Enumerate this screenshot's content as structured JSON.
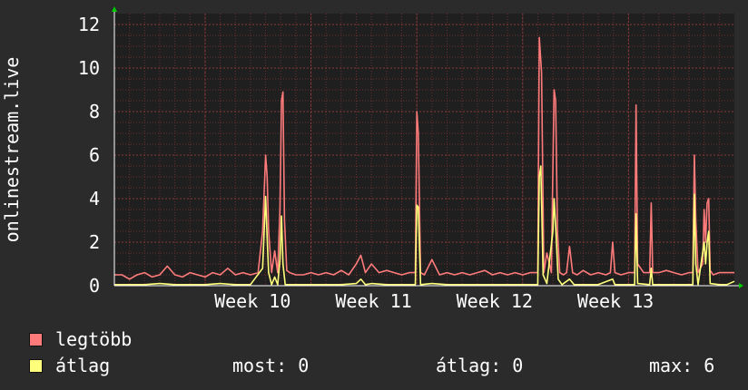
{
  "chart_data": {
    "type": "line",
    "ylabel": "onlinestream.live",
    "ylim": [
      0,
      12.5
    ],
    "yticks": [
      0,
      2,
      4,
      6,
      8,
      10,
      12
    ],
    "x_ticks": [
      "Week 10",
      "Week 11",
      "Week 12",
      "Week 13"
    ],
    "grid": true,
    "series": [
      {
        "name": "legtöbb",
        "color": "#ff7b7b",
        "points": [
          [
            0.0,
            0.5
          ],
          [
            0.5,
            0.5
          ],
          [
            1.0,
            0.3
          ],
          [
            1.5,
            0.5
          ],
          [
            2.0,
            0.6
          ],
          [
            2.5,
            0.4
          ],
          [
            3.0,
            0.5
          ],
          [
            3.5,
            0.9
          ],
          [
            4.0,
            0.5
          ],
          [
            4.5,
            0.4
          ],
          [
            5.0,
            0.6
          ],
          [
            5.5,
            0.5
          ],
          [
            6.0,
            0.4
          ],
          [
            6.5,
            0.6
          ],
          [
            7.0,
            0.5
          ],
          [
            7.5,
            0.8
          ],
          [
            8.0,
            0.5
          ],
          [
            8.5,
            0.6
          ],
          [
            9.0,
            0.5
          ],
          [
            9.5,
            0.6
          ],
          [
            9.8,
            2.5
          ],
          [
            10.0,
            6.0
          ],
          [
            10.1,
            5.0
          ],
          [
            10.2,
            2.5
          ],
          [
            10.4,
            0.6
          ],
          [
            10.6,
            1.6
          ],
          [
            10.8,
            0.6
          ],
          [
            10.95,
            3.5
          ],
          [
            11.05,
            8.5
          ],
          [
            11.15,
            8.9
          ],
          [
            11.25,
            3.0
          ],
          [
            11.4,
            0.7
          ],
          [
            11.6,
            0.6
          ],
          [
            12.0,
            0.5
          ],
          [
            12.5,
            0.5
          ],
          [
            13.0,
            0.6
          ],
          [
            13.5,
            0.5
          ],
          [
            14.0,
            0.6
          ],
          [
            14.5,
            0.5
          ],
          [
            15.0,
            0.7
          ],
          [
            15.5,
            0.5
          ],
          [
            16.0,
            1.0
          ],
          [
            16.3,
            1.4
          ],
          [
            16.6,
            0.6
          ],
          [
            17.0,
            1.0
          ],
          [
            17.5,
            0.6
          ],
          [
            18.0,
            0.7
          ],
          [
            18.5,
            0.6
          ],
          [
            19.0,
            0.5
          ],
          [
            19.5,
            0.6
          ],
          [
            19.9,
            0.6
          ],
          [
            20.0,
            8.0
          ],
          [
            20.1,
            7.0
          ],
          [
            20.25,
            0.6
          ],
          [
            20.5,
            0.5
          ],
          [
            21.0,
            1.2
          ],
          [
            21.5,
            0.5
          ],
          [
            22.0,
            0.6
          ],
          [
            22.5,
            0.5
          ],
          [
            23.0,
            0.6
          ],
          [
            23.5,
            0.5
          ],
          [
            24.0,
            0.6
          ],
          [
            24.5,
            0.7
          ],
          [
            25.0,
            0.5
          ],
          [
            25.5,
            0.6
          ],
          [
            26.0,
            0.5
          ],
          [
            26.5,
            0.6
          ],
          [
            27.0,
            0.5
          ],
          [
            27.5,
            0.6
          ],
          [
            28.0,
            0.6
          ],
          [
            28.1,
            11.4
          ],
          [
            28.25,
            9.8
          ],
          [
            28.4,
            0.6
          ],
          [
            28.6,
            1.5
          ],
          [
            28.9,
            0.6
          ],
          [
            29.0,
            5.5
          ],
          [
            29.08,
            9.0
          ],
          [
            29.18,
            8.5
          ],
          [
            29.3,
            2.5
          ],
          [
            29.45,
            0.6
          ],
          [
            29.7,
            0.5
          ],
          [
            29.9,
            0.6
          ],
          [
            30.1,
            1.8
          ],
          [
            30.3,
            0.6
          ],
          [
            30.6,
            0.5
          ],
          [
            31.0,
            0.7
          ],
          [
            31.5,
            0.5
          ],
          [
            32.0,
            0.6
          ],
          [
            32.5,
            0.5
          ],
          [
            32.8,
            0.6
          ],
          [
            32.95,
            2.0
          ],
          [
            33.1,
            0.6
          ],
          [
            33.5,
            0.5
          ],
          [
            34.0,
            0.6
          ],
          [
            34.4,
            0.6
          ],
          [
            34.5,
            8.3
          ],
          [
            34.6,
            1.0
          ],
          [
            35.0,
            0.6
          ],
          [
            35.4,
            0.6
          ],
          [
            35.5,
            3.8
          ],
          [
            35.6,
            0.6
          ],
          [
            36.0,
            0.6
          ],
          [
            36.5,
            0.7
          ],
          [
            37.0,
            0.6
          ],
          [
            37.5,
            0.5
          ],
          [
            38.0,
            0.6
          ],
          [
            38.25,
            0.6
          ],
          [
            38.35,
            6.0
          ],
          [
            38.45,
            3.0
          ],
          [
            38.6,
            0.6
          ],
          [
            38.9,
            1.0
          ],
          [
            39.0,
            3.5
          ],
          [
            39.1,
            2.0
          ],
          [
            39.2,
            3.8
          ],
          [
            39.3,
            4.0
          ],
          [
            39.4,
            0.7
          ],
          [
            39.6,
            0.5
          ],
          [
            40.0,
            0.6
          ],
          [
            40.5,
            0.6
          ],
          [
            41.0,
            0.6
          ]
        ]
      },
      {
        "name": "átlag",
        "color": "#ffff7b",
        "points": [
          [
            0.0,
            0.05
          ],
          [
            1.0,
            0.05
          ],
          [
            2.0,
            0.05
          ],
          [
            3.0,
            0.1
          ],
          [
            4.0,
            0.05
          ],
          [
            5.0,
            0.05
          ],
          [
            6.0,
            0.05
          ],
          [
            7.0,
            0.1
          ],
          [
            8.0,
            0.05
          ],
          [
            9.0,
            0.05
          ],
          [
            9.8,
            0.8
          ],
          [
            10.0,
            4.1
          ],
          [
            10.1,
            2.2
          ],
          [
            10.2,
            0.6
          ],
          [
            10.4,
            0.05
          ],
          [
            10.6,
            0.4
          ],
          [
            10.8,
            0.05
          ],
          [
            10.95,
            1.2
          ],
          [
            11.05,
            3.2
          ],
          [
            11.15,
            1.0
          ],
          [
            11.3,
            0.05
          ],
          [
            12.0,
            0.05
          ],
          [
            13.0,
            0.05
          ],
          [
            14.0,
            0.05
          ],
          [
            15.0,
            0.05
          ],
          [
            16.0,
            0.1
          ],
          [
            16.3,
            0.3
          ],
          [
            16.6,
            0.05
          ],
          [
            17.0,
            0.1
          ],
          [
            18.0,
            0.05
          ],
          [
            19.0,
            0.05
          ],
          [
            19.9,
            0.05
          ],
          [
            20.0,
            3.7
          ],
          [
            20.1,
            3.6
          ],
          [
            20.25,
            0.05
          ],
          [
            21.0,
            0.1
          ],
          [
            22.0,
            0.05
          ],
          [
            23.0,
            0.05
          ],
          [
            24.0,
            0.05
          ],
          [
            25.0,
            0.05
          ],
          [
            26.0,
            0.05
          ],
          [
            27.0,
            0.05
          ],
          [
            28.0,
            0.05
          ],
          [
            28.1,
            5.0
          ],
          [
            28.2,
            5.5
          ],
          [
            28.35,
            0.5
          ],
          [
            28.6,
            0.1
          ],
          [
            29.0,
            2.5
          ],
          [
            29.08,
            4.0
          ],
          [
            29.2,
            2.5
          ],
          [
            29.35,
            0.3
          ],
          [
            29.6,
            0.05
          ],
          [
            30.1,
            0.3
          ],
          [
            30.4,
            0.05
          ],
          [
            31.0,
            0.05
          ],
          [
            32.0,
            0.05
          ],
          [
            32.95,
            0.3
          ],
          [
            33.1,
            0.05
          ],
          [
            34.0,
            0.05
          ],
          [
            34.4,
            0.05
          ],
          [
            34.5,
            3.3
          ],
          [
            34.6,
            0.1
          ],
          [
            35.4,
            0.05
          ],
          [
            35.5,
            0.8
          ],
          [
            35.6,
            0.05
          ],
          [
            36.0,
            0.05
          ],
          [
            37.0,
            0.05
          ],
          [
            38.25,
            0.05
          ],
          [
            38.35,
            4.2
          ],
          [
            38.45,
            1.0
          ],
          [
            38.6,
            0.05
          ],
          [
            39.0,
            2.0
          ],
          [
            39.1,
            1.0
          ],
          [
            39.2,
            2.0
          ],
          [
            39.3,
            2.5
          ],
          [
            39.4,
            0.1
          ],
          [
            40.0,
            0.05
          ],
          [
            40.5,
            0.05
          ],
          [
            41.0,
            0.2
          ]
        ]
      }
    ]
  },
  "legend": {
    "items": [
      {
        "label": "legtöbb",
        "color": "#ff7b7b"
      },
      {
        "label": "átlag",
        "color": "#ffff7b"
      }
    ],
    "stats": {
      "most": "most: 0",
      "atlag": "átlag: 0",
      "max": "max: 6"
    }
  }
}
